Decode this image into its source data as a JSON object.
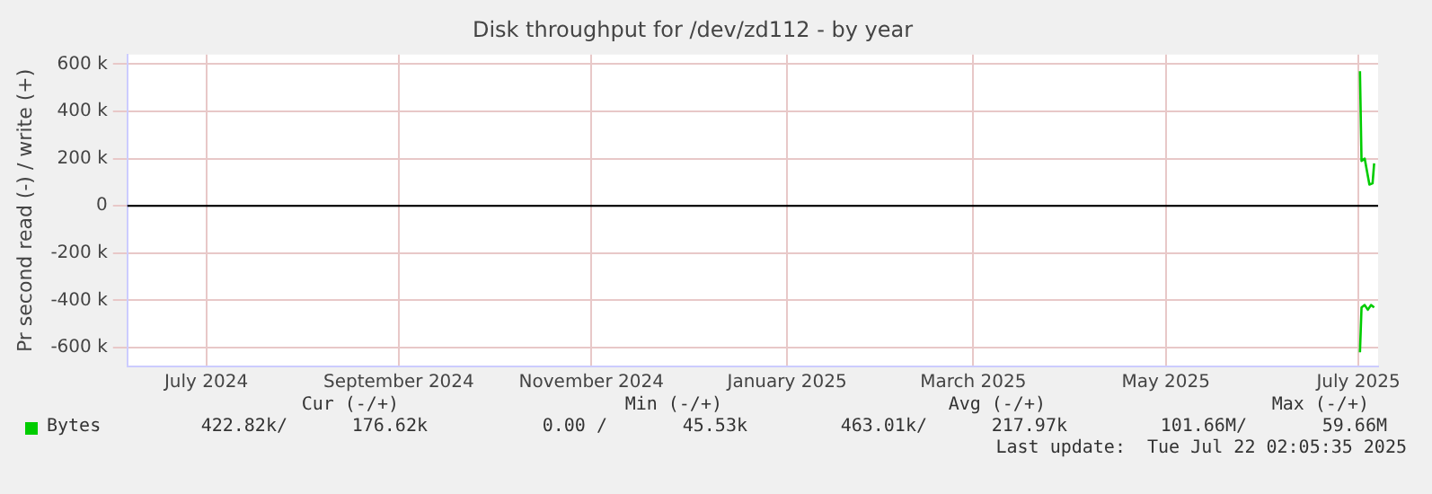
{
  "chart_data": {
    "type": "line",
    "title": "Disk throughput for /dev/zd112 - by year",
    "ylabel": "Pr second read (-) / write (+)",
    "xlim": [
      "2024-06-21",
      "2025-07-22T06:00"
    ],
    "xticks": [
      {
        "value": "2024-07-16",
        "label": "July 2024"
      },
      {
        "value": "2024-09-15",
        "label": "September 2024"
      },
      {
        "value": "2024-11-15",
        "label": "November 2024"
      },
      {
        "value": "2025-01-16",
        "label": "January 2025"
      },
      {
        "value": "2025-03-16",
        "label": "March 2025"
      },
      {
        "value": "2025-05-16",
        "label": "May 2025"
      },
      {
        "value": "2025-07-16",
        "label": "July 2025"
      }
    ],
    "ylim": [
      -680000,
      640000
    ],
    "yticks": [
      {
        "value": 600000,
        "label": "600 k"
      },
      {
        "value": 400000,
        "label": "400 k"
      },
      {
        "value": 200000,
        "label": "200 k"
      },
      0,
      {
        "value": -200000,
        "label": "-200 k"
      },
      {
        "value": -400000,
        "label": "-400 k"
      },
      {
        "value": -600000,
        "label": "-600 k"
      }
    ],
    "series": [
      {
        "name": "Bytes",
        "color": "#00cc00",
        "x": [
          "2025-07-16T12:00",
          "2025-07-17T00:00",
          "2025-07-18T00:00",
          "2025-07-19T12:00",
          "2025-07-20T12:00",
          "2025-07-21T00:00"
        ],
        "values": [
          570000,
          190000,
          200000,
          90000,
          95000,
          180000
        ]
      },
      {
        "color": "#00cc00",
        "x": [
          "2025-07-16T12:00",
          "2025-07-17T00:00",
          "2025-07-18T00:00",
          "2025-07-19T00:00",
          "2025-07-20T00:00",
          "2025-07-21T00:00"
        ],
        "values": [
          -620000,
          -430000,
          -420000,
          -440000,
          -420000,
          -430000
        ]
      }
    ],
    "ref_lines": [
      {
        "axis": "y",
        "value": 0,
        "color": "#000000"
      }
    ],
    "grid": true,
    "legend": "bottom",
    "marker": "none",
    "line_style": "solid",
    "annotations": [
      "Cur (-/+)",
      "Min (-/+)",
      "Avg (-/+)",
      "Max (-/+)",
      "422.82k/",
      "176.62k",
      "0.00 /",
      "45.53k",
      "463.01k/",
      "217.97k",
      "101.66M/",
      "59.66M",
      "Last update:  Tue Jul 22 02:05:35 2025"
    ]
  }
}
